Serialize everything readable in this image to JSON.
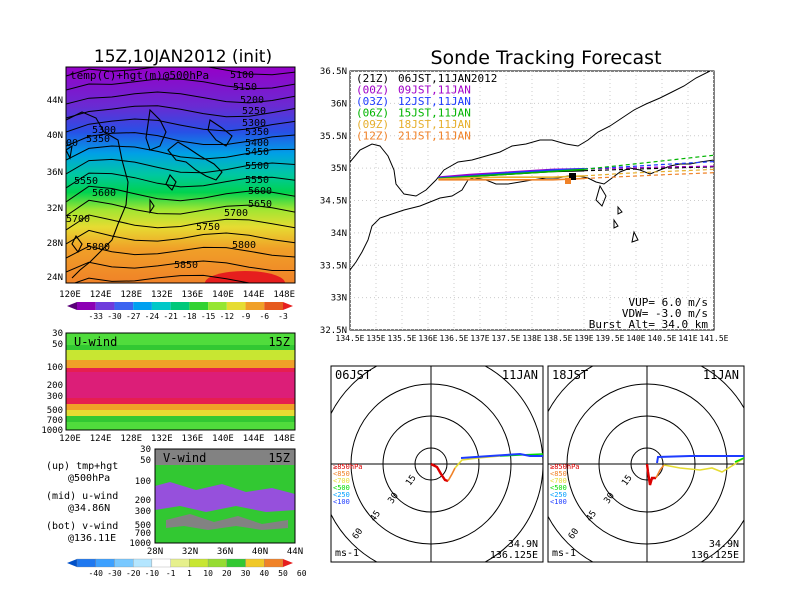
{
  "left_panel": {
    "title": "15Z,10JAN2012 (init)",
    "field_label": "temp(C)+hgt(m)@500hPa",
    "lat_ticks": [
      "44N",
      "40N",
      "36N",
      "32N",
      "28N",
      "24N"
    ],
    "lon_ticks": [
      "120E",
      "124E",
      "128E",
      "132E",
      "136E",
      "140E",
      "144E",
      "148E"
    ],
    "contour_labels_right": [
      "5100",
      "5150",
      "5200",
      "5250",
      "5300",
      "5350",
      "5400",
      "5450",
      "5500",
      "5550",
      "5600",
      "5650",
      "5700",
      "5750",
      "5800",
      "5850"
    ],
    "contour_labels_left": [
      "5300",
      "5350",
      "5550",
      "5600",
      "5700",
      "5800",
      "5850"
    ],
    "temp_colorbar": [
      "-33",
      "-30",
      "-27",
      "-24",
      "-21",
      "-18",
      "-15",
      "-12",
      "-9",
      "-6",
      "-3"
    ]
  },
  "u_panel": {
    "label": "U-wind",
    "time": "15Z",
    "p_ticks": [
      "30",
      "50",
      "100",
      "200",
      "300",
      "500",
      "700",
      "1000"
    ],
    "lon_ticks": [
      "120E",
      "124E",
      "128E",
      "132E",
      "136E",
      "140E",
      "144E",
      "148E"
    ]
  },
  "v_panel": {
    "label": "V-wind",
    "time": "15Z",
    "p_ticks": [
      "30",
      "50",
      "100",
      "200",
      "300",
      "500",
      "700",
      "1000"
    ],
    "lat_ticks": [
      "28N",
      "32N",
      "36N",
      "40N",
      "44N"
    ],
    "wind_colorbar": [
      "-40",
      "-30",
      "-20",
      "-10",
      "-1",
      "1",
      "10",
      "20",
      "30",
      "40",
      "50",
      "60"
    ]
  },
  "legend_text": {
    "up_line1": "(up) tmp+hgt",
    "up_line2": "@500hPa",
    "mid_line1": "(mid) u-wind",
    "mid_line2": "@34.86N",
    "bot_line1": "(bot) v-wind",
    "bot_line2": "@136.11E"
  },
  "track_panel": {
    "title": "Sonde Tracking Forecast",
    "lat_ticks": [
      "36.5N",
      "36N",
      "35.5N",
      "35N",
      "34.5N",
      "34N",
      "33.5N",
      "33N",
      "32.5N"
    ],
    "lon_ticks": [
      "134.5E",
      "135E",
      "135.5E",
      "136E",
      "136.5E",
      "137E",
      "137.5E",
      "138E",
      "138.5E",
      "139E",
      "139.5E",
      "140E",
      "140.5E",
      "141E",
      "141.5E"
    ],
    "runs": [
      {
        "tag": "(21Z)",
        "label": "06JST,11JAN2012",
        "color": "#000000"
      },
      {
        "tag": "(00Z)",
        "label": "09JST,11JAN",
        "color": "#a000c8"
      },
      {
        "tag": "(03Z)",
        "label": "12JST,11JAN",
        "color": "#1e3cff"
      },
      {
        "tag": "(06Z)",
        "label": "15JST,11JAN",
        "color": "#00b400"
      },
      {
        "tag": "(09Z)",
        "label": "18JST,11JAN",
        "color": "#e6af2d"
      },
      {
        "tag": "(12Z)",
        "label": "21JST,11JAN",
        "color": "#f08228"
      }
    ],
    "params": {
      "vup": "VUP=  6.0 m/s",
      "vdw": "VDW= -3.0 m/s",
      "burst": "Burst Alt= 34.0 km"
    }
  },
  "polar_left": {
    "time": "06JST",
    "date": "11JAN",
    "lat": "34.9N",
    "lon": "136.125E",
    "units": "ms-1",
    "ring_labels": [
      "15",
      "30",
      "45",
      "60"
    ],
    "levels": [
      {
        "label": "≥850hPa",
        "color": "#dc0000"
      },
      {
        "label": "<850",
        "color": "#f08228"
      },
      {
        "label": "<700",
        "color": "#e6dc32"
      },
      {
        "label": "<500",
        "color": "#00dc00"
      },
      {
        "label": "<250",
        "color": "#00a0ff"
      },
      {
        "label": "<100",
        "color": "#1e3cff"
      }
    ]
  },
  "polar_right": {
    "time": "18JST",
    "date": "11JAN",
    "lat": "34.9N",
    "lon": "136.125E",
    "units": "ms-1",
    "ring_labels": [
      "15",
      "30",
      "45",
      "60"
    ],
    "levels": [
      {
        "label": "≥850hPa",
        "color": "#dc0000"
      },
      {
        "label": "<850",
        "color": "#f08228"
      },
      {
        "label": "<700",
        "color": "#e6dc32"
      },
      {
        "label": "<500",
        "color": "#00dc00"
      },
      {
        "label": "<250",
        "color": "#00a0ff"
      },
      {
        "label": "<100",
        "color": "#1e3cff"
      }
    ]
  },
  "chart_data": [
    {
      "type": "heatmap",
      "title": "15Z,10JAN2012 (init)",
      "xlabel": "",
      "ylabel": "",
      "xlim": [
        "120E",
        "150E"
      ],
      "ylim": [
        "22N",
        "47N"
      ],
      "legend": "bottom",
      "colorbar": [
        -33,
        -30,
        -27,
        -24,
        -21,
        -18,
        -15,
        -12,
        -9,
        -6,
        -3
      ],
      "contour_values": [
        5100,
        5150,
        5200,
        5250,
        5300,
        5350,
        5400,
        5450,
        5500,
        5550,
        5600,
        5650,
        5700,
        5750,
        5800,
        5850
      ]
    },
    {
      "type": "heatmap",
      "title": "U-wind",
      "xlabel": "",
      "ylabel": "",
      "xlim": [
        "120E",
        "150E"
      ],
      "y_ticks": [
        30,
        50,
        100,
        200,
        300,
        500,
        700,
        1000
      ]
    },
    {
      "type": "heatmap",
      "title": "V-wind",
      "xlabel": "",
      "ylabel": "",
      "xlim": [
        "28N",
        "44N"
      ],
      "y_ticks": [
        30,
        50,
        100,
        200,
        300,
        500,
        700,
        1000
      ],
      "colorbar": [
        -40,
        -30,
        -20,
        -10,
        -1,
        1,
        10,
        20,
        30,
        40,
        50,
        60
      ]
    },
    {
      "type": "line",
      "title": "Sonde Tracking Forecast",
      "xlim": [
        134.5,
        141.5
      ],
      "ylim": [
        32.5,
        36.5
      ],
      "series": [
        {
          "name": "(21Z) 06JST,11JAN2012",
          "x": [
            136.2,
            136.8,
            137.4,
            138.0,
            138.4,
            139.0,
            139.8,
            140.6,
            141.5
          ],
          "y": [
            34.85,
            34.87,
            34.9,
            34.93,
            34.95,
            34.96,
            34.98,
            35.0,
            35.02
          ]
        },
        {
          "name": "(00Z) 09JST,11JAN",
          "x": [
            136.2,
            136.8,
            137.4,
            138.0,
            138.4,
            139.0,
            139.8,
            140.6,
            141.5
          ],
          "y": [
            34.86,
            34.9,
            34.93,
            34.96,
            34.98,
            34.99,
            35.0,
            35.02,
            35.03
          ]
        },
        {
          "name": "(03Z) 12JST,11JAN",
          "x": [
            136.2,
            136.8,
            137.4,
            138.0,
            138.4,
            139.0,
            139.8,
            140.6,
            141.5
          ],
          "y": [
            34.85,
            34.88,
            34.92,
            34.95,
            34.97,
            34.99,
            35.02,
            35.06,
            35.1
          ]
        },
        {
          "name": "(06Z) 15JST,11JAN",
          "x": [
            136.2,
            136.8,
            137.4,
            138.0,
            138.4,
            139.0,
            139.8,
            140.6,
            141.5
          ],
          "y": [
            34.84,
            34.87,
            34.9,
            34.93,
            34.95,
            34.98,
            35.05,
            35.12,
            35.2
          ]
        },
        {
          "name": "(09Z) 18JST,11JAN",
          "x": [
            136.2,
            136.8,
            137.4,
            138.0,
            138.4,
            139.0,
            139.8,
            140.6,
            141.5
          ],
          "y": [
            34.83,
            34.85,
            34.86,
            34.86,
            34.86,
            34.88,
            34.92,
            34.95,
            34.98
          ]
        },
        {
          "name": "(12Z) 21JST,11JAN",
          "x": [
            136.2,
            136.8,
            137.4,
            138.0,
            138.4,
            139.0,
            139.8,
            140.6,
            141.5
          ],
          "y": [
            34.82,
            34.82,
            34.82,
            34.82,
            34.82,
            34.84,
            34.87,
            34.9,
            34.93
          ]
        }
      ]
    }
  ]
}
